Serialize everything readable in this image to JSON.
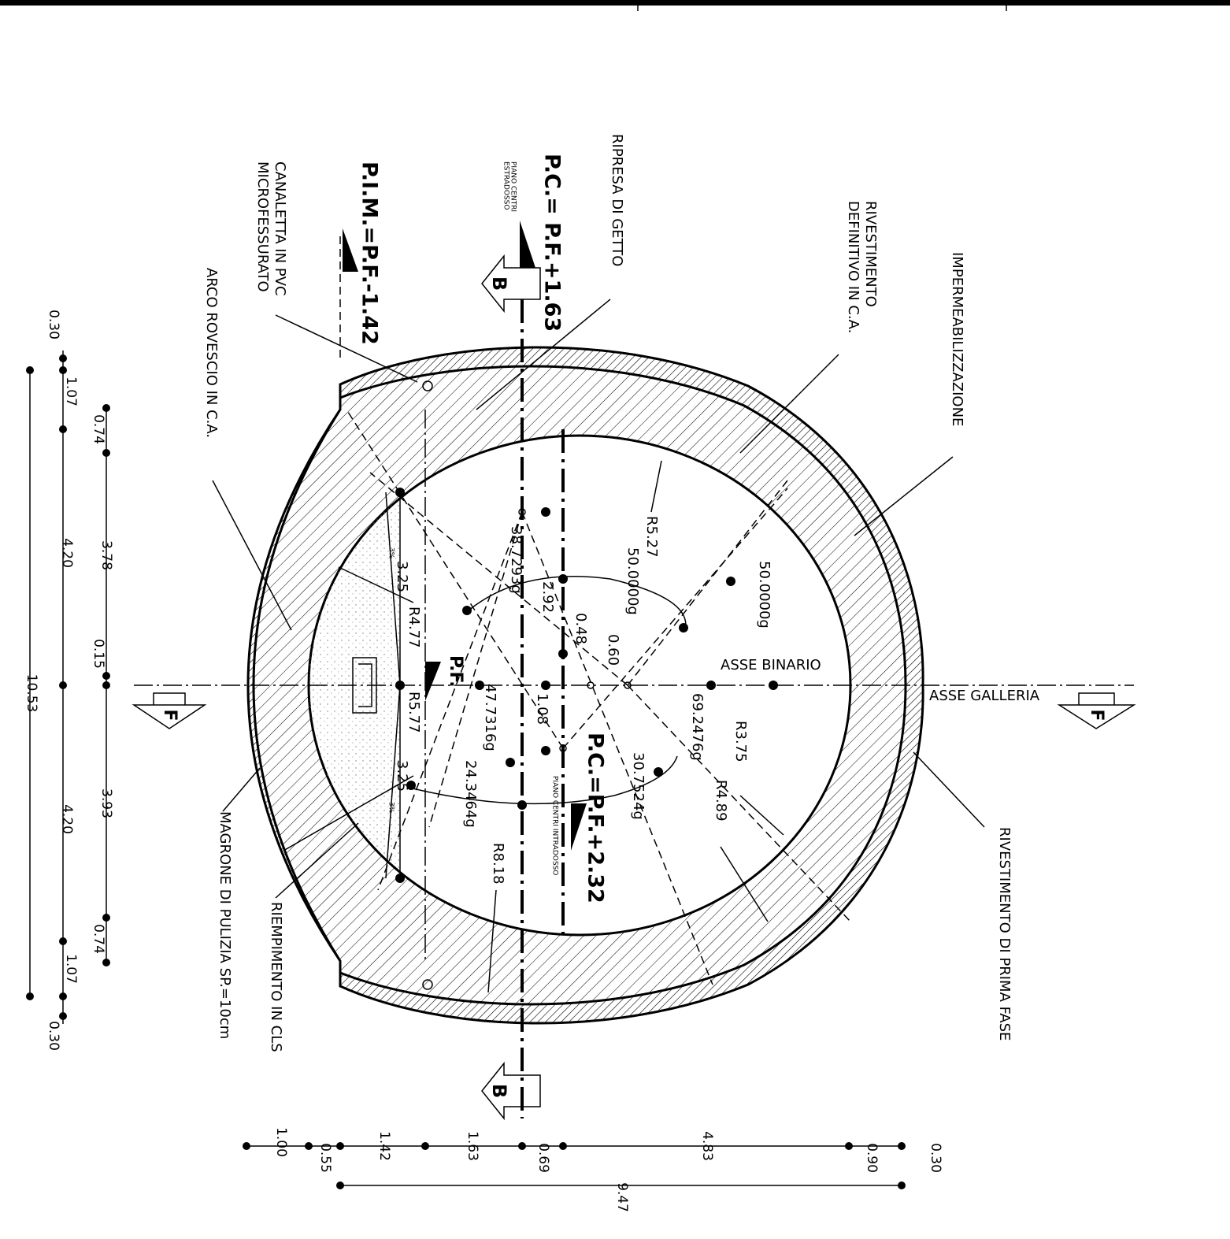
{
  "labels": [
    "IMPERMEABILIZZAZIONE",
    "RIVESTIMENTO",
    "DEFINITIVO IN C.A.",
    "RIPRESA DI GETTO",
    "P.C.= P.F.+1.63",
    "PIANO CENTRI",
    "ESTRADOSSO",
    "B",
    "P.I.M.=P.F.-1.42",
    "CANALETTA IN PVC",
    "MICROFESSURATO",
    "ARCO ROVESCIO IN C.A.",
    "R5.27",
    "50.0000g",
    "50.0000g",
    "38.7293g",
    "2.92",
    "0.48",
    "0.60",
    "ASSE BINARIO",
    "ASSE GALLERIA",
    "F",
    "F",
    "69.2476g",
    "R3.75",
    "R4.89",
    "30.7524g",
    "P.C.=P.F.+2.32",
    "PIANO CENTRI INTRADOSSO",
    "47.7316g",
    "24.3464g",
    "1.08",
    "R8.18",
    "P.F.",
    "R4.77",
    "R5.77",
    "3.25",
    "3.25",
    "3%",
    "3%",
    "MAGRONE DI PULIZIA SP.=10cm",
    "RIEMPIMENTO IN CLS",
    "RIVESTIMENTO DI PRIMA FASE",
    "B",
    "0.30",
    "1.07",
    "4.20",
    "10.53",
    "4.20",
    "1.07",
    "0.30",
    "0.74",
    "3.78",
    "0.15",
    "3.93",
    "0.74",
    "1.00",
    "0.55",
    "1.42",
    "1.63",
    "0.69",
    "4.83",
    "0.90",
    "0.30",
    "9.47"
  ]
}
